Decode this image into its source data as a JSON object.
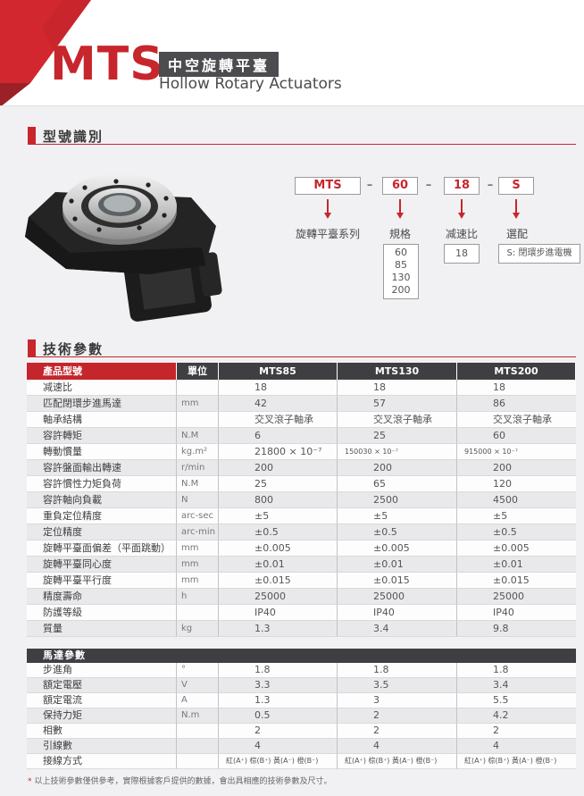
{
  "header": {
    "product_code": "MTS",
    "badge": "中空旋轉平臺",
    "subtitle": "Hollow Rotary Actuators"
  },
  "sections": {
    "model_id": "型號識別",
    "tech_params": "技術參數"
  },
  "model_diagram": {
    "code_parts": [
      "MTS",
      "60",
      "18",
      "S"
    ],
    "separator": "–",
    "labels": [
      "旋轉平臺系列",
      "規格",
      "减速比",
      "選配"
    ],
    "spec_options": [
      "60",
      "85",
      "130",
      "200"
    ],
    "ratio_value": "18",
    "option_note": "S: 閉環步進電機"
  },
  "spec_table": {
    "headers": [
      "產品型號",
      "單位",
      "MTS85",
      "MTS130",
      "MTS200"
    ],
    "rows": [
      {
        "label": "减速比",
        "unit": "",
        "values": [
          "18",
          "18",
          "18"
        ]
      },
      {
        "label": "匹配閉環步進馬達",
        "unit": "mm",
        "values": [
          "42",
          "57",
          "86"
        ]
      },
      {
        "label": "軸承結構",
        "unit": "",
        "values": [
          "交叉滾子軸承",
          "交叉滾子軸承",
          "交叉滾子軸承"
        ]
      },
      {
        "label": "容許轉矩",
        "unit": "N.M",
        "values": [
          "6",
          "25",
          "60"
        ]
      },
      {
        "label": "轉動慣量",
        "unit": "kg.m²",
        "values": [
          "21800 × 10⁻⁷",
          "150030 × 10⁻⁷",
          "915000 × 10⁻⁷"
        ]
      },
      {
        "label": "容許盤面輸出轉速",
        "unit": "r/min",
        "values": [
          "200",
          "200",
          "200"
        ]
      },
      {
        "label": "容許慣性力矩負荷",
        "unit": "N.M",
        "values": [
          "25",
          "65",
          "120"
        ]
      },
      {
        "label": "容許軸向負載",
        "unit": "N",
        "values": [
          "800",
          "2500",
          "4500"
        ]
      },
      {
        "label": "重負定位精度",
        "unit": "arc-sec",
        "values": [
          "±5",
          "±5",
          "±5"
        ]
      },
      {
        "label": "定位精度",
        "unit": "arc-min",
        "values": [
          "±0.5",
          "±0.5",
          "±0.5"
        ]
      },
      {
        "label": "旋轉平臺面偏差（平面跳動）",
        "unit": "mm",
        "values": [
          "±0.005",
          "±0.005",
          "±0.005"
        ]
      },
      {
        "label": "旋轉平臺同心度",
        "unit": "mm",
        "values": [
          "±0.01",
          "±0.01",
          "±0.01"
        ]
      },
      {
        "label": "旋轉平臺平行度",
        "unit": "mm",
        "values": [
          "±0.015",
          "±0.015",
          "±0.015"
        ]
      },
      {
        "label": "精度壽命",
        "unit": "h",
        "values": [
          "25000",
          "25000",
          "25000"
        ]
      },
      {
        "label": "防護等級",
        "unit": "",
        "values": [
          "IP40",
          "IP40",
          "IP40"
        ]
      },
      {
        "label": "質量",
        "unit": "kg",
        "values": [
          "1.3",
          "3.4",
          "9.8"
        ]
      }
    ]
  },
  "motor_table": {
    "section_title": "馬達參數",
    "rows": [
      {
        "label": "步進角",
        "unit": "°",
        "values": [
          "1.8",
          "1.8",
          "1.8"
        ]
      },
      {
        "label": "額定電壓",
        "unit": "V",
        "values": [
          "3.3",
          "3.5",
          "3.4"
        ]
      },
      {
        "label": "額定電流",
        "unit": "A",
        "values": [
          "1.3",
          "3",
          "5.5"
        ]
      },
      {
        "label": "保持力矩",
        "unit": "N.m",
        "values": [
          "0.5",
          "2",
          "4.2"
        ]
      },
      {
        "label": "相數",
        "unit": "",
        "values": [
          "2",
          "2",
          "2"
        ]
      },
      {
        "label": "引線數",
        "unit": "",
        "values": [
          "4",
          "4",
          "4"
        ]
      },
      {
        "label": "接線方式",
        "unit": "",
        "values": [
          "紅(A⁺) 棕(B⁺) 黃(A⁻) 橙(B⁻)",
          "紅(A⁺) 棕(B⁺) 黃(A⁻) 橙(B⁻)",
          "紅(A⁺) 棕(B⁺) 黃(A⁻) 橙(B⁻)"
        ]
      }
    ]
  },
  "footnote": {
    "star": "*",
    "text": "以上技術參數僅供參考，實際根據客戶提供的數據，會出具相應的技術參數及尺寸。"
  },
  "colors": {
    "accent": "#c7262c",
    "dark_header": "#3e3e43",
    "page_gray": "#f1f1f3",
    "row_alt": "#e9e9ec"
  }
}
